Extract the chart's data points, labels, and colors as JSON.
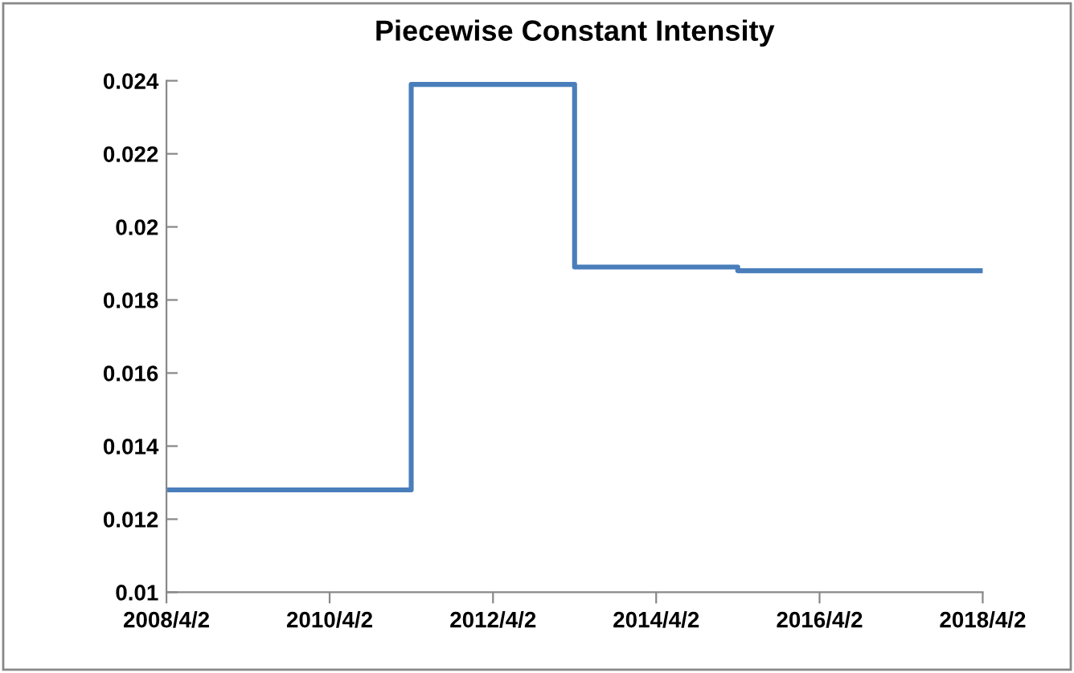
{
  "chart_data": {
    "type": "step",
    "title": "Piecewise Constant Intensity",
    "x": [
      "2008-04-02",
      "2011-04-02",
      "2013-04-02",
      "2015-04-02",
      "2018-04-02"
    ],
    "series": [
      {
        "color": "#4a7ebb",
        "values": [
          0.0128,
          0.0239,
          0.0189,
          0.0188,
          0.0188
        ]
      }
    ],
    "xlim": [
      "2008-04-02",
      "2018-04-02"
    ],
    "xticks": [
      {
        "value": "2008-04-02",
        "label": "2008/4/2"
      },
      {
        "value": "2010-04-02",
        "label": "2010/4/2"
      },
      {
        "value": "2012-04-02",
        "label": "2012/4/2"
      },
      {
        "value": "2014-04-02",
        "label": "2014/4/2"
      },
      {
        "value": "2016-04-02",
        "label": "2016/4/2"
      },
      {
        "value": "2018-04-02",
        "label": "2018/4/2"
      }
    ],
    "ylim": [
      0.01,
      0.024
    ],
    "yticks": [
      0.01,
      0.012,
      0.014,
      0.016,
      0.018,
      0.02,
      0.022,
      0.024
    ],
    "grid": false,
    "marker": "none",
    "line_style": "solid"
  }
}
